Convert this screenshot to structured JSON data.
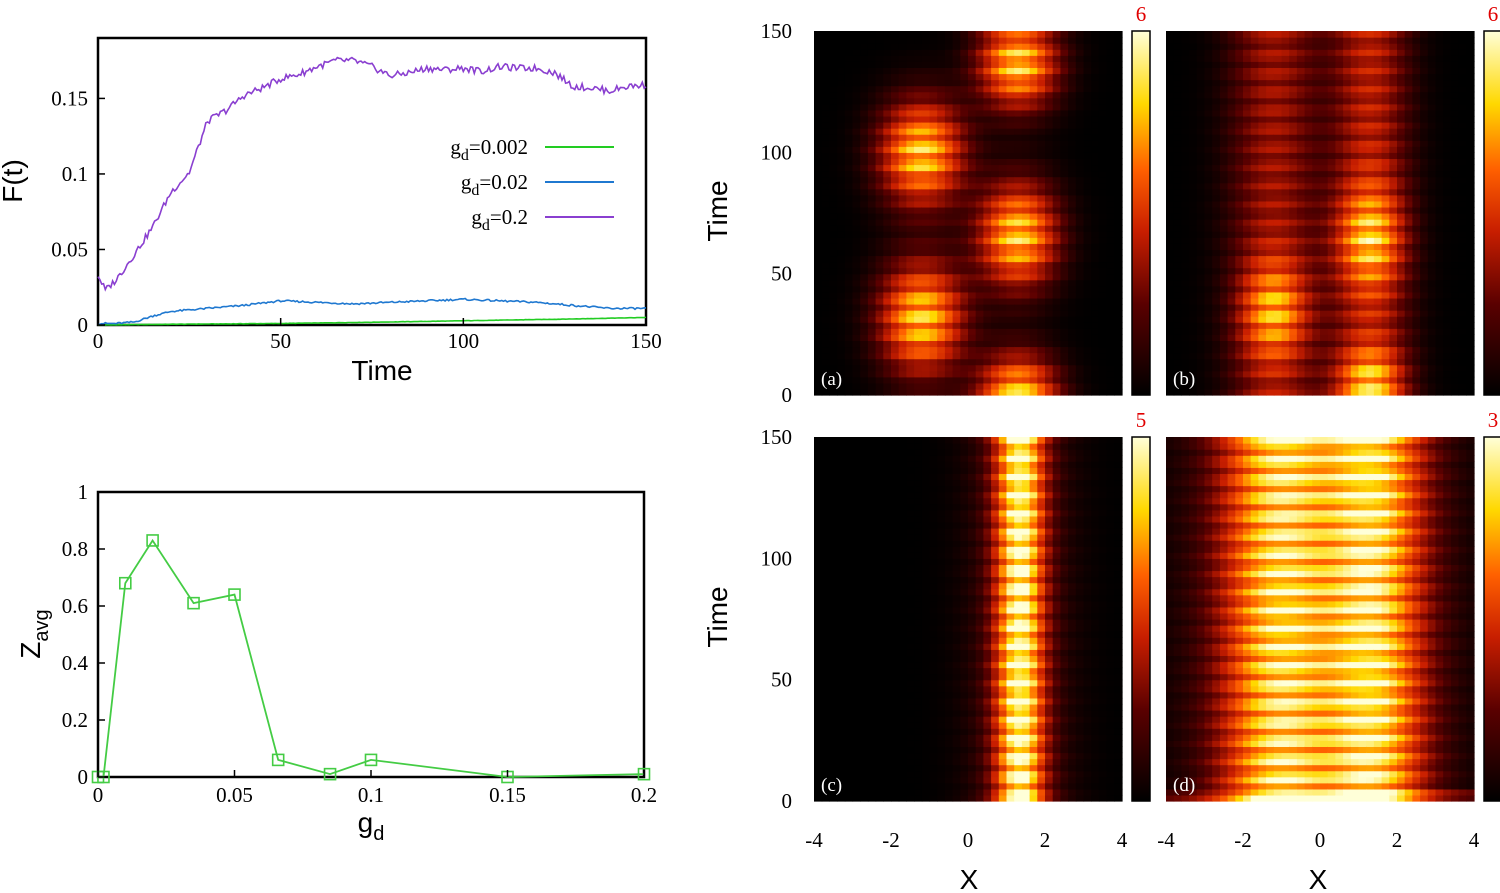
{
  "chart_data": [
    {
      "type": "line",
      "xlabel": "Time",
      "ylabel": "F(t)",
      "xlim": [
        0,
        150
      ],
      "ylim": [
        0,
        0.19
      ],
      "xticks": [
        "0",
        "50",
        "100",
        "150"
      ],
      "yticks": [
        "0",
        "0.05",
        "0.1",
        "0.15"
      ],
      "legend_position": "center-right",
      "series": [
        {
          "name": "g_d=0.002",
          "legend_main": "g",
          "legend_sub": "d",
          "legend_rest": "=0.002",
          "color": "#22cc22",
          "x": [
            0,
            20,
            50,
            80,
            100,
            130,
            150
          ],
          "y": [
            0.0,
            0.0005,
            0.001,
            0.002,
            0.0028,
            0.004,
            0.005
          ]
        },
        {
          "name": "g_d=0.02",
          "legend_main": "g",
          "legend_sub": "d",
          "legend_rest": "=0.02",
          "color": "#1f78d0",
          "x": [
            0,
            5,
            10,
            15,
            20,
            30,
            40,
            50,
            60,
            70,
            80,
            90,
            100,
            110,
            120,
            130,
            140,
            150
          ],
          "y": [
            0.001,
            0.001,
            0.002,
            0.006,
            0.009,
            0.011,
            0.013,
            0.016,
            0.015,
            0.014,
            0.015,
            0.016,
            0.017,
            0.016,
            0.015,
            0.013,
            0.011,
            0.011
          ]
        },
        {
          "name": "g_d=0.2",
          "legend_main": "g",
          "legend_sub": "d",
          "legend_rest": "=0.2",
          "color": "#8a3fd0",
          "x": [
            0,
            2,
            5,
            10,
            15,
            20,
            25,
            30,
            35,
            40,
            45,
            50,
            55,
            60,
            65,
            70,
            75,
            80,
            85,
            90,
            95,
            100,
            105,
            110,
            115,
            120,
            125,
            130,
            135,
            140,
            145,
            150
          ],
          "y": [
            0.033,
            0.023,
            0.03,
            0.047,
            0.065,
            0.088,
            0.101,
            0.135,
            0.142,
            0.152,
            0.157,
            0.163,
            0.166,
            0.171,
            0.175,
            0.175,
            0.171,
            0.165,
            0.167,
            0.17,
            0.169,
            0.17,
            0.168,
            0.171,
            0.17,
            0.17,
            0.167,
            0.158,
            0.157,
            0.155,
            0.158,
            0.159
          ]
        }
      ]
    },
    {
      "type": "line",
      "xlabel_main": "g",
      "xlabel_sub": "d",
      "ylabel_main": "Z",
      "ylabel_sub": "avg",
      "xlim": [
        0,
        0.2
      ],
      "ylim": [
        0,
        1
      ],
      "xticks": [
        "0",
        "0.05",
        "0.1",
        "0.15",
        "0.2"
      ],
      "yticks": [
        "0",
        "0.2",
        "0.4",
        "0.6",
        "0.8",
        "1"
      ],
      "marker": "open-square",
      "color": "#44cc44",
      "series": [
        {
          "x": [
            0,
            0.002,
            0.01,
            0.02,
            0.035,
            0.05,
            0.066,
            0.085,
            0.1,
            0.15,
            0.2
          ],
          "y": [
            0.0,
            0.0,
            0.68,
            0.83,
            0.61,
            0.64,
            0.06,
            0.01,
            0.06,
            0.0,
            0.01
          ]
        }
      ]
    },
    {
      "type": "heatmap",
      "panels": [
        {
          "label": "(a)",
          "cbar_max": "6",
          "xlabel": "",
          "ylabel": "Time",
          "mode": "a"
        },
        {
          "label": "(b)",
          "cbar_max": "6",
          "xlabel": "",
          "ylabel": "",
          "mode": "b"
        },
        {
          "label": "(c)",
          "cbar_max": "5",
          "xlabel": "X",
          "ylabel": "Time",
          "mode": "c"
        },
        {
          "label": "(d)",
          "cbar_max": "3",
          "xlabel": "X",
          "ylabel": "",
          "mode": "d"
        }
      ],
      "xlim": [
        -4,
        4
      ],
      "ylim": [
        0,
        150
      ],
      "xticks": [
        "-4",
        "-2",
        "0",
        "2",
        "4"
      ],
      "yticks": [
        "0",
        "50",
        "100",
        "150"
      ],
      "colormap": [
        "#000000",
        "#5a0000",
        "#c81e00",
        "#ff6000",
        "#ffd800",
        "#ffffd8"
      ]
    }
  ]
}
